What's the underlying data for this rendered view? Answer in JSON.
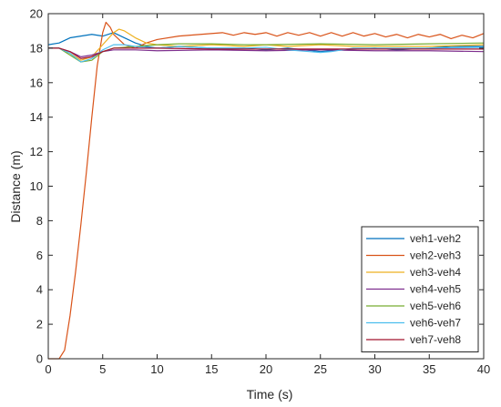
{
  "chart_data": {
    "type": "line",
    "xlabel": "Time (s)",
    "ylabel": "Distance (m)",
    "xlim": [
      0,
      40
    ],
    "ylim": [
      0,
      20
    ],
    "xticks": [
      0,
      5,
      10,
      15,
      20,
      25,
      30,
      35,
      40
    ],
    "yticks": [
      0,
      2,
      4,
      6,
      8,
      10,
      12,
      14,
      16,
      18,
      20
    ],
    "grid": false,
    "legend_position": "bottom-right",
    "series": [
      {
        "name": "veh1-veh2",
        "color": "#0072bd",
        "points": [
          [
            0,
            18.2
          ],
          [
            1,
            18.3
          ],
          [
            2,
            18.6
          ],
          [
            3,
            18.7
          ],
          [
            4,
            18.8
          ],
          [
            5,
            18.7
          ],
          [
            6,
            18.9
          ],
          [
            7,
            18.6
          ],
          [
            8,
            18.3
          ],
          [
            9,
            18.1
          ],
          [
            10,
            18.0
          ],
          [
            12,
            18.1
          ],
          [
            15,
            18.0
          ],
          [
            18,
            18.0
          ],
          [
            20,
            17.9
          ],
          [
            22,
            18.0
          ],
          [
            25,
            17.8
          ],
          [
            27,
            17.9
          ],
          [
            30,
            18.0
          ],
          [
            32,
            17.9
          ],
          [
            35,
            18.0
          ],
          [
            37,
            18.1
          ],
          [
            40,
            18.1
          ]
        ]
      },
      {
        "name": "veh2-veh3",
        "color": "#d95319",
        "points": [
          [
            0,
            0
          ],
          [
            0.5,
            0
          ],
          [
            1,
            0
          ],
          [
            1.5,
            0.5
          ],
          [
            2,
            2.5
          ],
          [
            2.5,
            5
          ],
          [
            3,
            7.8
          ],
          [
            3.5,
            10.8
          ],
          [
            4,
            14
          ],
          [
            4.5,
            17
          ],
          [
            5,
            18.9
          ],
          [
            5.3,
            19.5
          ],
          [
            5.7,
            19.2
          ],
          [
            6,
            18.8
          ],
          [
            7,
            18.2
          ],
          [
            8,
            18.0
          ],
          [
            9,
            18.3
          ],
          [
            10,
            18.5
          ],
          [
            12,
            18.7
          ],
          [
            14,
            18.8
          ],
          [
            16,
            18.9
          ],
          [
            17,
            18.75
          ],
          [
            18,
            18.9
          ],
          [
            19,
            18.8
          ],
          [
            20,
            18.9
          ],
          [
            21,
            18.7
          ],
          [
            22,
            18.9
          ],
          [
            23,
            18.75
          ],
          [
            24,
            18.9
          ],
          [
            25,
            18.7
          ],
          [
            26,
            18.9
          ],
          [
            27,
            18.7
          ],
          [
            28,
            18.9
          ],
          [
            29,
            18.7
          ],
          [
            30,
            18.85
          ],
          [
            31,
            18.65
          ],
          [
            32,
            18.8
          ],
          [
            33,
            18.6
          ],
          [
            34,
            18.8
          ],
          [
            35,
            18.65
          ],
          [
            36,
            18.8
          ],
          [
            37,
            18.55
          ],
          [
            38,
            18.75
          ],
          [
            39,
            18.6
          ],
          [
            40,
            18.85
          ]
        ]
      },
      {
        "name": "veh3-veh4",
        "color": "#edb120",
        "points": [
          [
            0,
            18.0
          ],
          [
            1,
            18.0
          ],
          [
            2,
            17.7
          ],
          [
            3,
            17.3
          ],
          [
            4,
            17.5
          ],
          [
            5,
            18.2
          ],
          [
            6,
            18.9
          ],
          [
            6.5,
            19.1
          ],
          [
            7,
            19.0
          ],
          [
            8,
            18.6
          ],
          [
            9,
            18.3
          ],
          [
            10,
            18.2
          ],
          [
            12,
            18.1
          ],
          [
            15,
            18.2
          ],
          [
            18,
            18.1
          ],
          [
            20,
            18.2
          ],
          [
            22,
            18.1
          ],
          [
            25,
            18.2
          ],
          [
            28,
            18.1
          ],
          [
            30,
            18.1
          ],
          [
            33,
            18.1
          ],
          [
            35,
            18.1
          ],
          [
            40,
            18.2
          ]
        ]
      },
      {
        "name": "veh4-veh5",
        "color": "#7e2f8e",
        "points": [
          [
            0,
            18.0
          ],
          [
            1,
            18.0
          ],
          [
            2,
            17.8
          ],
          [
            3,
            17.5
          ],
          [
            4,
            17.6
          ],
          [
            5,
            17.8
          ],
          [
            6,
            17.9
          ],
          [
            8,
            17.9
          ],
          [
            10,
            17.85
          ],
          [
            15,
            17.9
          ],
          [
            20,
            17.85
          ],
          [
            25,
            17.9
          ],
          [
            30,
            17.85
          ],
          [
            35,
            17.85
          ],
          [
            40,
            17.8
          ]
        ]
      },
      {
        "name": "veh5-veh6",
        "color": "#77ac30",
        "points": [
          [
            0,
            18.0
          ],
          [
            1,
            18.0
          ],
          [
            2,
            17.6
          ],
          [
            3,
            17.2
          ],
          [
            4,
            17.3
          ],
          [
            5,
            17.8
          ],
          [
            6,
            18.0
          ],
          [
            8,
            18.1
          ],
          [
            10,
            18.2
          ],
          [
            12,
            18.25
          ],
          [
            15,
            18.25
          ],
          [
            18,
            18.2
          ],
          [
            20,
            18.2
          ],
          [
            25,
            18.25
          ],
          [
            30,
            18.2
          ],
          [
            35,
            18.25
          ],
          [
            40,
            18.3
          ]
        ]
      },
      {
        "name": "veh6-veh7",
        "color": "#4dbeee",
        "points": [
          [
            0,
            18.0
          ],
          [
            1,
            18.0
          ],
          [
            2,
            17.7
          ],
          [
            3,
            17.2
          ],
          [
            4,
            17.4
          ],
          [
            5,
            17.9
          ],
          [
            6,
            18.2
          ],
          [
            7,
            18.2
          ],
          [
            8,
            18.1
          ],
          [
            10,
            18.0
          ],
          [
            12,
            18.1
          ],
          [
            15,
            18.0
          ],
          [
            18,
            18.0
          ],
          [
            20,
            18.05
          ],
          [
            22,
            17.9
          ],
          [
            24,
            17.8
          ],
          [
            25,
            17.75
          ],
          [
            26,
            17.8
          ],
          [
            28,
            18.0
          ],
          [
            30,
            18.0
          ],
          [
            35,
            18.0
          ],
          [
            40,
            18.05
          ]
        ]
      },
      {
        "name": "veh7-veh8",
        "color": "#a2142f",
        "points": [
          [
            0,
            18.0
          ],
          [
            1,
            18.0
          ],
          [
            2,
            17.8
          ],
          [
            3,
            17.4
          ],
          [
            4,
            17.5
          ],
          [
            5,
            17.8
          ],
          [
            6,
            18.0
          ],
          [
            8,
            18.0
          ],
          [
            10,
            18.0
          ],
          [
            15,
            17.95
          ],
          [
            20,
            17.95
          ],
          [
            25,
            17.95
          ],
          [
            30,
            17.95
          ],
          [
            35,
            17.95
          ],
          [
            40,
            17.95
          ]
        ]
      }
    ]
  }
}
